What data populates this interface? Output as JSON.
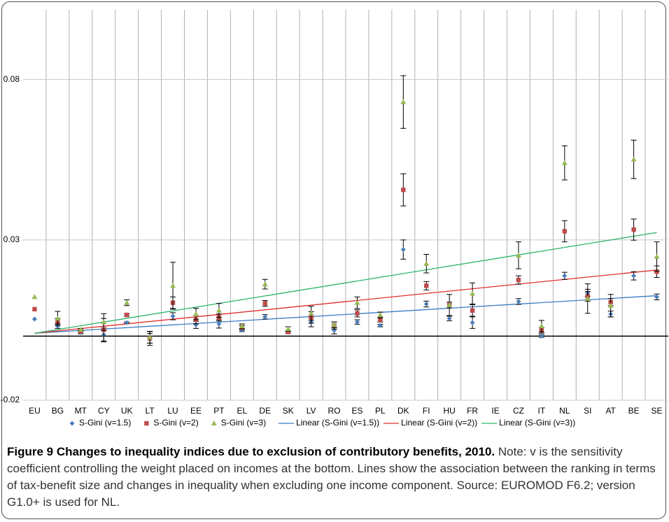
{
  "chart_data": {
    "type": "errorbar-scatter",
    "categories": [
      "EU",
      "BG",
      "MT",
      "CY",
      "UK",
      "LT",
      "LU",
      "EE",
      "PT",
      "EL",
      "DE",
      "SK",
      "LV",
      "RO",
      "ES",
      "PL",
      "DK",
      "FI",
      "HU",
      "FR",
      "IE",
      "CZ",
      "IT",
      "NL",
      "SI",
      "AT",
      "BE",
      "SE"
    ],
    "ylim": [
      -0.02,
      0.1
    ],
    "yticks": [
      -0.02,
      0.03,
      0.08
    ],
    "grid": true,
    "series": [
      {
        "name": "S-Gini (v=1.5)",
        "color": "#4a7ebb",
        "marker": "diamond",
        "values": [
          0.0053,
          0.0031,
          0.0011,
          0.0004,
          0.0042,
          -0.0007,
          0.0062,
          0.0035,
          0.0038,
          0.0018,
          0.006,
          0.0013,
          0.0044,
          0.0018,
          0.0044,
          0.0033,
          0.027,
          0.01,
          0.0055,
          0.0042,
          null,
          0.0108,
          0.0,
          0.0188,
          0.0135,
          0.0069,
          0.0188,
          0.0122
        ],
        "errors": [
          0,
          0.0007,
          0.0004,
          0.0022,
          0.0002,
          0.0015,
          0.0011,
          0.0011,
          0.0013,
          0.0004,
          0.0007,
          0.0004,
          0.0015,
          0.0011,
          0.0007,
          0.0004,
          0.003,
          0.0009,
          0.0007,
          0.0018,
          null,
          0.0009,
          0.0004,
          0.0011,
          0.0011,
          0.0009,
          0.0013,
          0.0009
        ]
      },
      {
        "name": "S-Gini (v=2)",
        "color": "#be4b48",
        "marker": "square",
        "values": [
          0.0084,
          0.0046,
          0.0015,
          0.002,
          0.0066,
          -0.0007,
          0.0104,
          0.0051,
          0.0058,
          0.0027,
          0.0102,
          0.0013,
          0.0058,
          0.0033,
          0.0071,
          0.0051,
          0.0456,
          0.0157,
          0.0097,
          0.008,
          null,
          0.0175,
          0.0018,
          0.0327,
          0.0124,
          0.0106,
          0.0332,
          0.0201
        ],
        "errors": [
          0,
          0.0009,
          0.0004,
          0.0035,
          0.0004,
          0.0022,
          0.0018,
          0.0013,
          0.0011,
          0.0007,
          0.0009,
          0.0004,
          0.0018,
          0.0011,
          0.0011,
          0.0007,
          0.005,
          0.0013,
          0.0009,
          0.0018,
          null,
          0.0013,
          0.0009,
          0.0033,
          0.0015,
          0.0011,
          0.0033,
          0.0018
        ]
      },
      {
        "name": "S-Gini (v=3)",
        "color": "#98b954",
        "marker": "triangle",
        "values": [
          0.0122,
          0.0055,
          0.002,
          0.0044,
          0.0104,
          -0.0004,
          0.0157,
          0.0069,
          0.008,
          0.0031,
          0.0162,
          0.0022,
          0.0071,
          0.0035,
          0.0104,
          0.0066,
          0.073,
          0.0226,
          0.0097,
          0.0133,
          null,
          0.0252,
          0.0031,
          0.054,
          0.0117,
          0.0095,
          0.0551,
          0.0248
        ],
        "errors": [
          0,
          0.0022,
          0.0004,
          0.0026,
          0.0009,
          0.0018,
          0.0073,
          0.0018,
          0.0022,
          0.0007,
          0.0015,
          0.0007,
          0.0022,
          0.0009,
          0.0018,
          0.0009,
          0.0082,
          0.0029,
          0.0033,
          0.0033,
          null,
          0.0042,
          0.0018,
          0.0053,
          0.0046,
          0.0035,
          0.006,
          0.0046
        ]
      }
    ],
    "trendlines": [
      {
        "name": "Linear (S-Gini (v=1.5))",
        "color": "#3a7cc4",
        "values": [
          0.0009,
          0.0126
        ]
      },
      {
        "name": "Linear (S-Gini (v=2))",
        "color": "#e0302c",
        "values": [
          0.0009,
          0.0206
        ]
      },
      {
        "name": "Linear (S-Gini (v=3))",
        "color": "#2ab46a",
        "values": [
          0.0009,
          0.0323
        ]
      }
    ]
  },
  "caption": {
    "title": "Figure 9 Changes to inequality indices due to exclusion of contributory benefits, 2010.",
    "text": "Note: v is the sensitivity coefficient controlling the weight placed on incomes at the bottom. Lines show the association between the ranking in terms of tax-benefit size and changes in inequality when excluding one income component. Source: EUROMOD F6.2; version G1.0+ is used for NL."
  }
}
